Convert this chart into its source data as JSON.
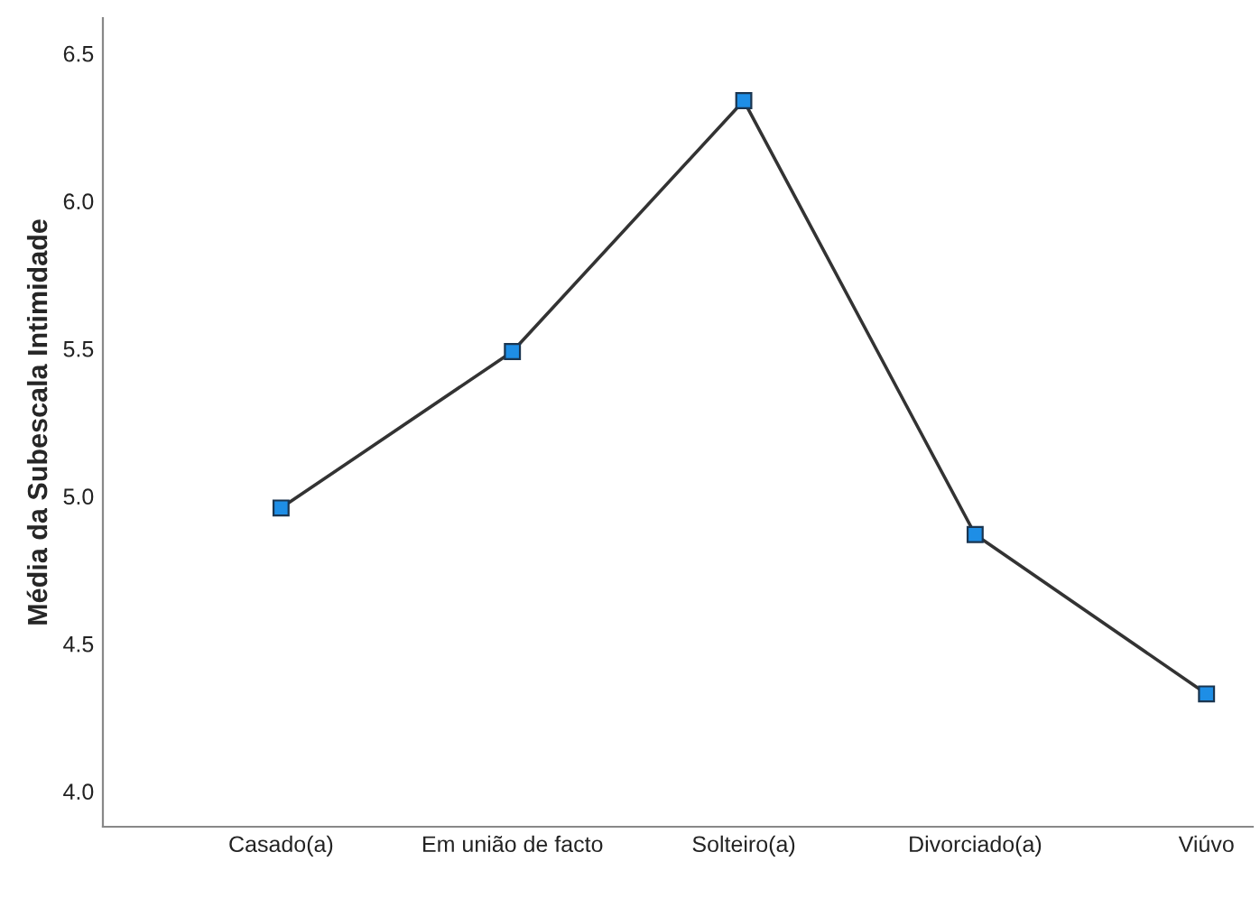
{
  "chart_data": {
    "type": "line",
    "ylabel": "Média da Subescala Intimidade",
    "categories": [
      "Casado(a)",
      "Em união de facto",
      "Solteiro(a)",
      "Divorciado(a)",
      "Viúvo"
    ],
    "series": [
      {
        "color": "#1e8ee6",
        "values": [
          4.96,
          5.49,
          6.34,
          4.87,
          4.33
        ]
      }
    ],
    "ylim": [
      3.88,
      6.62
    ],
    "yticks": [
      {
        "value": 4.0,
        "label": "4.0"
      },
      4.5,
      {
        "value": 5.0,
        "label": "5.0"
      },
      5.5,
      {
        "value": 6.0,
        "label": "6.0"
      },
      6.5
    ],
    "grid": false,
    "marker": "square",
    "line_style": "solid"
  }
}
